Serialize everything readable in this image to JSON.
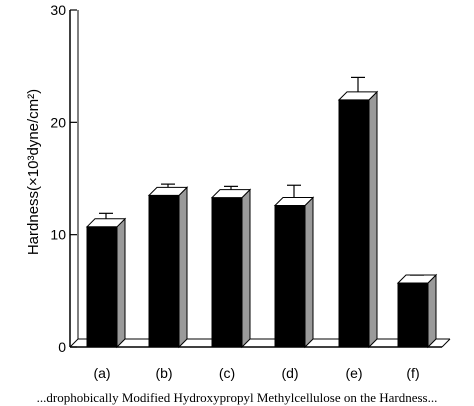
{
  "chart_data": {
    "type": "bar",
    "categories": [
      "(a)",
      "(b)",
      "(c)",
      "(d)",
      "(e)",
      "(f)"
    ],
    "values": [
      10.7,
      13.5,
      13.3,
      12.6,
      22.0,
      5.7
    ],
    "errors": [
      1.2,
      1.0,
      1.0,
      1.8,
      2.0,
      0.7
    ],
    "ylabel": "Hardness(×10³dyne/cm²)",
    "ylim": [
      0,
      30
    ],
    "yticks": [
      0,
      10,
      20,
      30
    ],
    "ytick_labels": [
      "0",
      "10",
      "20",
      "30"
    ],
    "grid": false,
    "bar_color": "#000000",
    "side_color": "#9a9a9a"
  },
  "caption": "...drophobically Modified Hydroxypropyl Methylcellulose on the Hardness..."
}
